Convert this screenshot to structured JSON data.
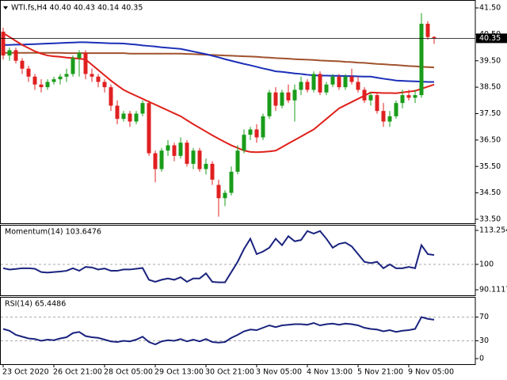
{
  "chart_data": [
    {
      "type": "candlestick",
      "title": "WTI.fs,H4  40.40 40.43 40.14 40.35",
      "categories": [
        "23 Oct 2020",
        null,
        null,
        null,
        null,
        null,
        null,
        null,
        "26 Oct 21:00",
        null,
        null,
        null,
        null,
        null,
        null,
        null,
        "28 Oct 05:00",
        null,
        null,
        null,
        null,
        null,
        null,
        null,
        "29 Oct 13:00",
        null,
        null,
        null,
        null,
        null,
        null,
        null,
        "30 Oct 21:00",
        null,
        null,
        null,
        null,
        null,
        null,
        null,
        "3 Nov 05:00",
        null,
        null,
        null,
        null,
        null,
        null,
        null,
        "4 Nov 13:00",
        null,
        null,
        null,
        null,
        null,
        null,
        null,
        "5 Nov 21:00",
        null,
        null,
        null,
        null,
        null,
        null,
        null,
        "9 Nov 05:00",
        null,
        null,
        null,
        null
      ],
      "open": [
        40.6,
        39.7,
        39.9,
        39.5,
        39.2,
        38.9,
        38.6,
        38.5,
        38.7,
        38.8,
        38.9,
        39.0,
        39.6,
        39.8,
        39.0,
        38.9,
        38.7,
        38.5,
        37.8,
        37.3,
        37.5,
        37.2,
        37.5,
        37.9,
        36.0,
        35.4,
        36.1,
        36.3,
        35.9,
        36.4,
        35.6,
        36.1,
        35.4,
        35.6,
        34.8,
        34.3,
        34.5,
        35.3,
        36.1,
        36.7,
        36.9,
        36.6,
        37.4,
        38.3,
        37.8,
        38.3,
        38.0,
        38.4,
        38.7,
        38.4,
        39.0,
        38.3,
        38.6,
        38.9,
        38.5,
        38.9,
        38.7,
        38.4,
        38.0,
        38.2,
        37.6,
        37.2,
        37.4,
        37.9,
        38.2,
        38.1,
        38.2,
        40.9,
        40.4
      ],
      "high": [
        40.75,
        40.0,
        40.0,
        39.6,
        39.3,
        39.0,
        38.8,
        38.8,
        38.9,
        39.0,
        39.2,
        39.7,
        39.9,
        39.9,
        39.2,
        39.0,
        38.8,
        38.6,
        38.0,
        37.6,
        37.6,
        37.6,
        38.0,
        38.0,
        36.1,
        36.2,
        36.5,
        36.4,
        36.6,
        36.5,
        36.2,
        36.2,
        35.8,
        35.7,
        35.0,
        34.6,
        35.5,
        36.3,
        36.9,
        37.0,
        37.1,
        37.5,
        38.4,
        38.5,
        38.4,
        38.6,
        38.6,
        38.9,
        38.8,
        39.1,
        39.1,
        38.7,
        39.0,
        39.0,
        39.0,
        39.2,
        38.9,
        38.5,
        38.3,
        38.3,
        37.9,
        37.6,
        38.0,
        38.4,
        38.4,
        38.4,
        41.3,
        41.0,
        40.43
      ],
      "low": [
        39.55,
        39.5,
        39.4,
        39.0,
        38.7,
        38.4,
        38.3,
        38.4,
        38.6,
        38.6,
        38.7,
        38.9,
        38.9,
        38.8,
        38.7,
        38.5,
        38.3,
        37.6,
        37.1,
        37.2,
        37.0,
        37.1,
        37.4,
        35.9,
        34.9,
        35.3,
        35.9,
        35.7,
        35.8,
        35.5,
        35.4,
        35.3,
        35.2,
        34.8,
        33.6,
        34.0,
        34.4,
        35.2,
        36.0,
        36.5,
        36.4,
        36.5,
        37.3,
        37.6,
        37.7,
        37.9,
        37.2,
        38.2,
        38.3,
        38.3,
        38.2,
        38.2,
        38.5,
        38.4,
        38.4,
        38.6,
        38.3,
        37.9,
        37.8,
        37.5,
        37.0,
        37.0,
        37.3,
        37.7,
        38.0,
        37.9,
        38.1,
        40.3,
        40.14
      ],
      "close": [
        39.7,
        39.9,
        39.5,
        39.2,
        38.9,
        38.6,
        38.5,
        38.7,
        38.8,
        38.9,
        39.0,
        39.6,
        39.8,
        39.0,
        38.9,
        38.7,
        38.5,
        37.8,
        37.3,
        37.5,
        37.2,
        37.5,
        37.9,
        36.0,
        35.4,
        36.1,
        36.3,
        35.9,
        36.4,
        35.6,
        36.1,
        35.4,
        35.6,
        35.0,
        34.3,
        34.5,
        35.3,
        36.1,
        36.7,
        36.9,
        36.6,
        37.4,
        38.3,
        37.8,
        38.3,
        38.0,
        38.4,
        38.7,
        38.4,
        39.0,
        38.3,
        38.6,
        38.9,
        38.5,
        38.9,
        38.7,
        38.4,
        38.0,
        38.2,
        37.6,
        37.2,
        37.4,
        37.9,
        38.2,
        38.1,
        38.2,
        40.9,
        40.4,
        40.35
      ],
      "up_color": "#1a9c1a",
      "down_color": "#e02020",
      "moving_averages": [
        {
          "color": "#a0522d",
          "values": [
            39.8,
            39.8,
            39.8,
            39.8,
            39.8,
            39.8,
            39.8,
            39.8,
            39.8,
            39.8,
            39.79,
            39.79,
            39.79,
            39.79,
            39.79,
            39.79,
            39.79,
            39.79,
            39.79,
            39.79,
            39.77,
            39.77,
            39.77,
            39.77,
            39.77,
            39.77,
            39.77,
            39.77,
            39.77,
            39.76,
            39.75,
            39.74,
            39.73,
            39.72,
            39.71,
            39.7,
            39.69,
            39.68,
            39.67,
            39.66,
            39.65,
            39.63,
            39.62,
            39.6,
            39.59,
            39.58,
            39.56,
            39.55,
            39.54,
            39.53,
            39.51,
            39.5,
            39.49,
            39.48,
            39.46,
            39.45,
            39.43,
            39.42,
            39.4,
            39.38,
            39.37,
            39.35,
            39.34,
            39.32,
            39.3,
            39.29,
            39.27,
            39.26,
            39.25
          ]
        },
        {
          "color": "#1c2fb8",
          "values": [
            40.1,
            40.1,
            40.11,
            40.11,
            40.12,
            40.13,
            40.14,
            40.15,
            40.16,
            40.17,
            40.18,
            40.19,
            40.2,
            40.2,
            40.19,
            40.18,
            40.17,
            40.16,
            40.16,
            40.15,
            40.13,
            40.11,
            40.08,
            40.06,
            40.04,
            40.01,
            39.99,
            39.97,
            39.95,
            39.9,
            39.85,
            39.8,
            39.75,
            39.69,
            39.63,
            39.56,
            39.5,
            39.44,
            39.38,
            39.33,
            39.27,
            39.21,
            39.16,
            39.1,
            39.08,
            39.05,
            39.02,
            39.0,
            38.97,
            38.95,
            38.94,
            38.94,
            38.93,
            38.93,
            38.92,
            38.92,
            38.91,
            38.9,
            38.9,
            38.86,
            38.82,
            38.79,
            38.75,
            38.74,
            38.73,
            38.72,
            38.71,
            38.7,
            38.7
          ]
        },
        {
          "color": "#e0201a",
          "values": [
            40.55,
            40.4,
            40.25,
            40.1,
            39.98,
            39.86,
            39.77,
            39.7,
            39.67,
            39.65,
            39.62,
            39.6,
            39.58,
            39.55,
            39.35,
            39.15,
            38.95,
            38.75,
            38.57,
            38.4,
            38.28,
            38.17,
            38.06,
            37.95,
            37.84,
            37.73,
            37.62,
            37.51,
            37.4,
            37.25,
            37.1,
            36.96,
            36.82,
            36.68,
            36.55,
            36.42,
            36.3,
            36.2,
            36.1,
            36.05,
            36.04,
            36.05,
            36.07,
            36.1,
            36.23,
            36.37,
            36.5,
            36.63,
            36.77,
            36.9,
            37.1,
            37.3,
            37.5,
            37.7,
            37.82,
            37.94,
            38.06,
            38.18,
            38.3,
            38.29,
            38.28,
            38.28,
            38.27,
            38.3,
            38.33,
            38.36,
            38.44,
            38.52,
            38.6
          ]
        }
      ],
      "current_price": 40.35,
      "ylim": [
        33.5,
        41.5
      ],
      "yticks": [
        {
          "value": 41.5,
          "label": "41.50"
        },
        {
          "value": 40.5,
          "label": "40.50"
        },
        {
          "value": 39.5,
          "label": "39.50"
        },
        {
          "value": 38.5,
          "label": "38.50"
        },
        {
          "value": 37.5,
          "label": "37.50"
        },
        {
          "value": 36.5,
          "label": "36.50"
        },
        {
          "value": 35.5,
          "label": "35.50"
        },
        {
          "value": 34.5,
          "label": "34.50"
        },
        {
          "value": 33.5,
          "label": "33.50"
        }
      ]
    },
    {
      "type": "line",
      "title": "Momentum(14) 103.6476",
      "color": "#1a237e",
      "values": [
        98.5,
        98,
        98.2,
        98.5,
        98.5,
        98.3,
        97,
        96.8,
        97,
        97.2,
        97.5,
        98.5,
        97.5,
        99,
        98.8,
        98,
        98.4,
        97.5,
        97.5,
        98,
        98,
        98.3,
        98.6,
        94,
        93.2,
        94,
        94.5,
        94,
        95,
        93.2,
        94.5,
        94.5,
        96.5,
        93.2,
        93,
        93,
        97,
        101,
        106,
        110,
        104,
        105,
        106.5,
        110,
        107.5,
        111,
        109,
        109.5,
        113,
        112,
        113,
        110,
        106.5,
        108,
        108.5,
        107,
        104,
        101,
        100.5,
        101,
        98.5,
        100,
        98.5,
        98.5,
        99,
        98.5,
        107.5,
        104,
        103.6476
      ],
      "ylim": [
        90.1117,
        113.2541
      ],
      "yticks": [
        113.2541,
        100,
        90.1117
      ],
      "levels": [
        100
      ]
    },
    {
      "type": "line",
      "title": "RSI(14) 65.4486",
      "color": "#1a237e",
      "values": [
        50,
        47,
        40,
        37,
        34,
        33,
        30,
        32,
        31,
        34,
        36,
        43,
        45,
        38,
        36,
        35,
        32,
        29,
        28,
        30,
        29,
        32,
        37,
        28,
        24,
        29,
        31,
        30,
        33,
        29,
        32,
        29,
        33,
        28,
        27,
        28,
        35,
        40,
        46,
        49,
        48,
        52,
        56,
        53,
        56,
        57,
        58,
        58,
        57,
        60,
        56,
        58,
        59,
        57,
        59,
        58,
        56,
        52,
        50,
        49,
        46,
        48,
        45,
        47,
        48,
        50,
        70,
        67,
        65.4486
      ],
      "ylim": [
        0,
        100
      ],
      "yticks": [
        70,
        30,
        0
      ],
      "levels": [
        70,
        30
      ]
    }
  ]
}
